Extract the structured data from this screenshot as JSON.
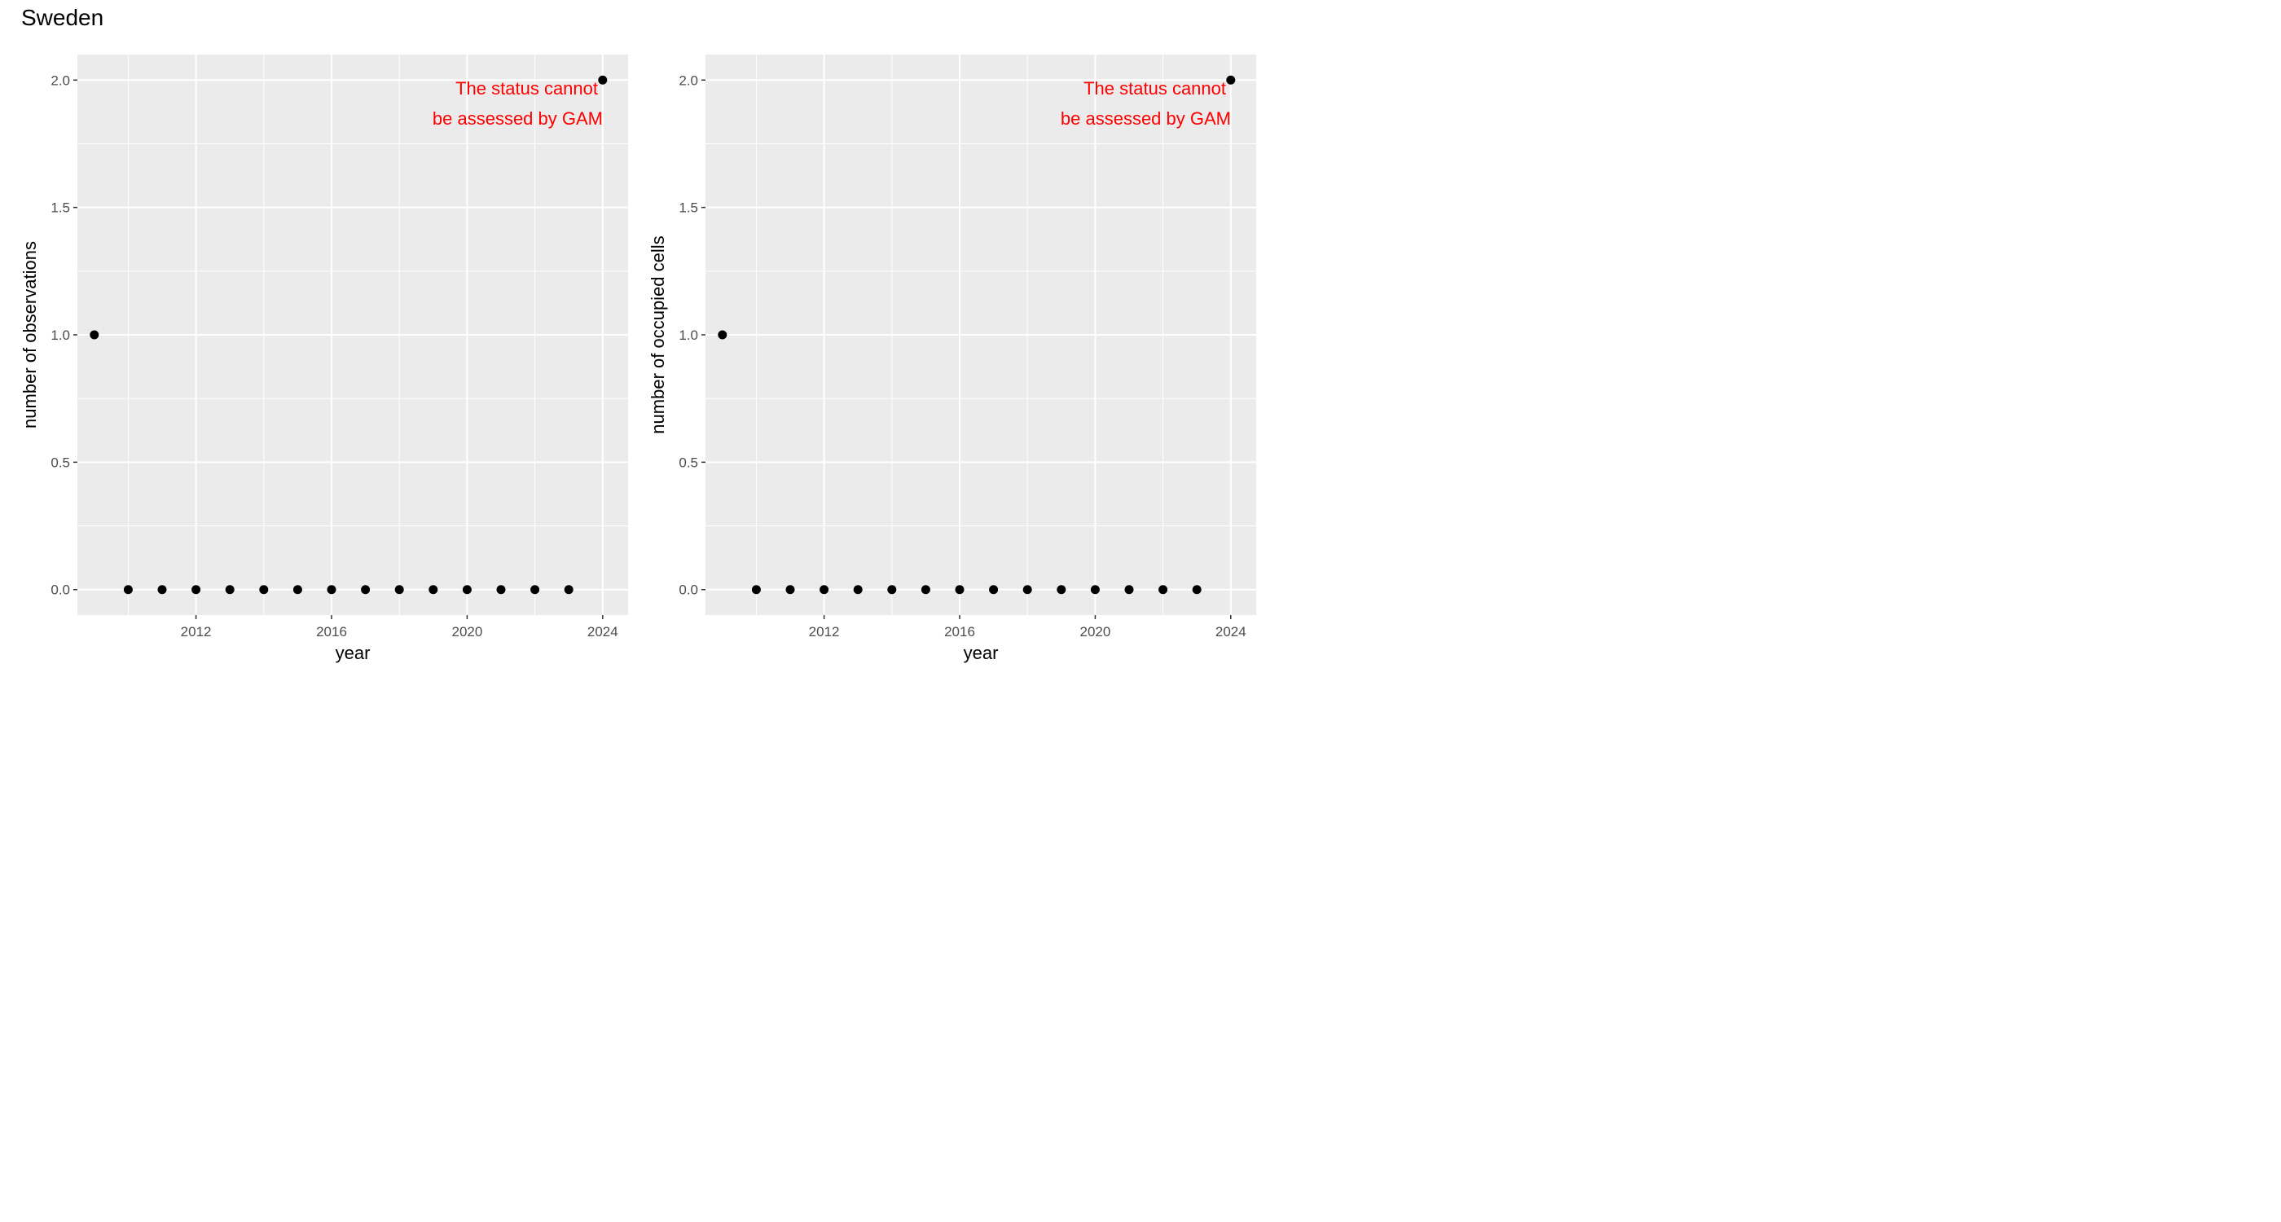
{
  "title": "Sweden",
  "chart_data": [
    {
      "type": "scatter",
      "title": "",
      "xlabel": "year",
      "ylabel": "number of observations",
      "x": [
        2009,
        2010,
        2011,
        2012,
        2013,
        2014,
        2015,
        2016,
        2017,
        2018,
        2019,
        2020,
        2021,
        2022,
        2023,
        2024
      ],
      "y": [
        1,
        0,
        0,
        0,
        0,
        0,
        0,
        0,
        0,
        0,
        0,
        0,
        0,
        0,
        0,
        2
      ],
      "xlim": [
        2008.5,
        2024.75
      ],
      "ylim": [
        -0.1,
        2.1
      ],
      "xticks": [
        2012,
        2016,
        2020,
        2024
      ],
      "xtick_labels": [
        "2012",
        "2016",
        "2020",
        "2024"
      ],
      "yticks": [
        0,
        0.5,
        1,
        1.5,
        2
      ],
      "ytick_labels": [
        "0.0",
        "0.5",
        "1.0",
        "1.5",
        "2.0"
      ],
      "grid": true,
      "point_color": "#000000",
      "panel_background": "#ebebeb",
      "annotation": {
        "lines": [
          "The status cannot",
          "be assessed by GAM"
        ],
        "color": "#ff0000"
      }
    },
    {
      "type": "scatter",
      "title": "",
      "xlabel": "year",
      "ylabel": "number of occupied cells",
      "x": [
        2009,
        2010,
        2011,
        2012,
        2013,
        2014,
        2015,
        2016,
        2017,
        2018,
        2019,
        2020,
        2021,
        2022,
        2023,
        2024
      ],
      "y": [
        1,
        0,
        0,
        0,
        0,
        0,
        0,
        0,
        0,
        0,
        0,
        0,
        0,
        0,
        0,
        2
      ],
      "xlim": [
        2008.5,
        2024.75
      ],
      "ylim": [
        -0.1,
        2.1
      ],
      "xticks": [
        2012,
        2016,
        2020,
        2024
      ],
      "xtick_labels": [
        "2012",
        "2016",
        "2020",
        "2024"
      ],
      "yticks": [
        0,
        0.5,
        1,
        1.5,
        2
      ],
      "ytick_labels": [
        "0.0",
        "0.5",
        "1.0",
        "1.5",
        "2.0"
      ],
      "grid": true,
      "point_color": "#000000",
      "panel_background": "#ebebeb",
      "annotation": {
        "lines": [
          "The status cannot",
          "be assessed by GAM"
        ],
        "color": "#ff0000"
      }
    }
  ]
}
